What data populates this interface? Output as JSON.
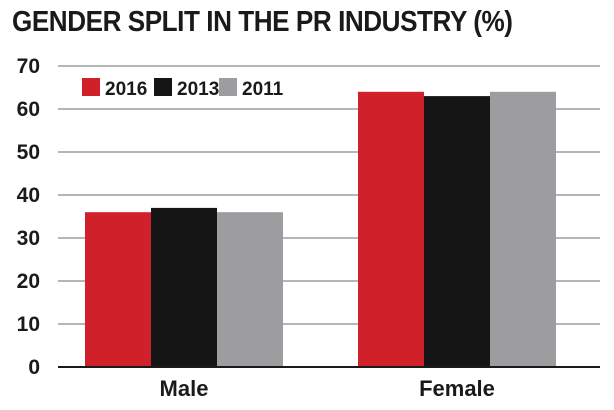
{
  "chart_data": {
    "type": "bar",
    "title": "GENDER SPLIT IN THE PR INDUSTRY (%)",
    "xlabel": "",
    "ylabel": "",
    "categories": [
      "Male",
      "Female"
    ],
    "series": [
      {
        "name": "2016",
        "values": [
          36,
          64
        ],
        "color": "#d0202a"
      },
      {
        "name": "2013",
        "values": [
          37,
          63
        ],
        "color": "#151515"
      },
      {
        "name": "2011",
        "values": [
          36,
          64
        ],
        "color": "#9d9d9f"
      }
    ],
    "ylim": [
      0,
      70
    ],
    "yticks": [
      "0",
      "10",
      "20",
      "30",
      "40",
      "50",
      "60",
      "70"
    ],
    "grid": true,
    "legend": "top-left"
  }
}
